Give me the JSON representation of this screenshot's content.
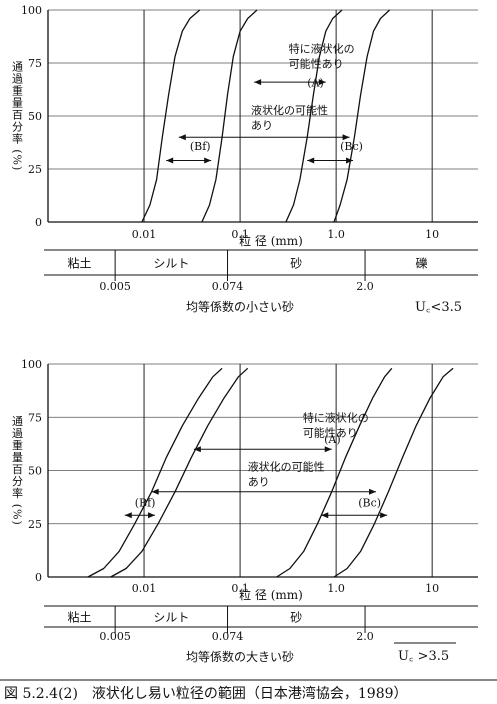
{
  "caption": "図 5.2.4(2)　液状化し易い粒径の範囲（日本港湾協会，1989）",
  "chart_data": [
    {
      "type": "line",
      "xscale": "log",
      "xlim": [
        0.001,
        30
      ],
      "ylim": [
        0,
        100
      ],
      "grid": true,
      "yticks": [
        "0",
        "25",
        "50",
        "75",
        "100"
      ],
      "xticks": [
        "0.01",
        "0.1",
        "1.0",
        "10"
      ],
      "xticks_values": [
        0.01,
        0.1,
        1.0,
        10
      ],
      "xlabel": "粒 径 (mm)",
      "ylabel": "通過重量百分率 (%)",
      "series": [
        {
          "x": [
            0.0095,
            0.0115,
            0.0135,
            0.0155,
            0.018,
            0.021,
            0.025,
            0.03,
            0.038
          ],
          "y": [
            0,
            8,
            20,
            40,
            60,
            78,
            90,
            96,
            100
          ]
        },
        {
          "x": [
            0.04,
            0.048,
            0.056,
            0.065,
            0.074,
            0.085,
            0.1,
            0.12,
            0.15
          ],
          "y": [
            0,
            8,
            20,
            40,
            60,
            78,
            90,
            96,
            100
          ]
        },
        {
          "x": [
            0.3,
            0.36,
            0.42,
            0.5,
            0.58,
            0.67,
            0.78,
            0.92,
            1.15
          ],
          "y": [
            0,
            8,
            20,
            40,
            60,
            78,
            90,
            96,
            100
          ]
        },
        {
          "x": [
            0.95,
            1.1,
            1.3,
            1.55,
            1.8,
            2.1,
            2.45,
            2.9,
            3.6
          ],
          "y": [
            0,
            8,
            20,
            40,
            60,
            78,
            90,
            96,
            100
          ]
        }
      ],
      "annotations": [
        {
          "text": [
            "特に液状化の",
            "可能性あり"
          ],
          "x": 0.32,
          "y": 80
        },
        {
          "text": [
            "(A)"
          ],
          "x": 0.5,
          "y": 64
        },
        {
          "text": [
            "液状化の可能性",
            "あり"
          ],
          "x": 0.13,
          "y": 51
        },
        {
          "text": [
            "(Bf)"
          ],
          "x": 0.03,
          "y": 34
        },
        {
          "text": [
            "(Bc)"
          ],
          "x": 1.1,
          "y": 34
        }
      ],
      "arrows": [
        {
          "from": [
            0.14,
            66
          ],
          "to": [
            0.78,
            66
          ]
        },
        {
          "from": [
            0.023,
            40
          ],
          "to": [
            1.38,
            40
          ]
        },
        {
          "from": [
            0.017,
            29
          ],
          "to": [
            0.05,
            29
          ]
        },
        {
          "from": [
            0.5,
            29
          ],
          "to": [
            1.5,
            29
          ]
        }
      ],
      "classification": {
        "labels": [
          "粘土",
          "シルト",
          "砂",
          "礫"
        ],
        "boundaries": [
          "0.005",
          "0.074",
          "2.0"
        ],
        "boundary_values": [
          0.005,
          0.074,
          2.0
        ]
      },
      "subtitle": "均等係数の小さい砂",
      "uc": "U꜀<3.5"
    },
    {
      "type": "line",
      "xscale": "log",
      "xlim": [
        0.001,
        30
      ],
      "ylim": [
        0,
        100
      ],
      "grid": true,
      "yticks": [
        "0",
        "25",
        "50",
        "75",
        "100"
      ],
      "xticks": [
        "0.01",
        "0.1",
        "1.0",
        "10"
      ],
      "xticks_values": [
        0.01,
        0.1,
        1.0,
        10
      ],
      "xlabel": "粒 径 (mm)",
      "ylabel": "通過重量百分率 (%)",
      "series": [
        {
          "x": [
            0.0026,
            0.0038,
            0.0055,
            0.008,
            0.012,
            0.017,
            0.025,
            0.037,
            0.052,
            0.065
          ],
          "y": [
            0,
            4,
            12,
            25,
            40,
            56,
            71,
            84,
            94,
            98
          ]
        },
        {
          "x": [
            0.0045,
            0.0065,
            0.0095,
            0.014,
            0.021,
            0.031,
            0.046,
            0.068,
            0.096,
            0.12
          ],
          "y": [
            0,
            4,
            12,
            25,
            40,
            56,
            71,
            84,
            94,
            98
          ]
        },
        {
          "x": [
            0.24,
            0.33,
            0.46,
            0.64,
            0.9,
            1.25,
            1.75,
            2.4,
            3.2,
            3.8
          ],
          "y": [
            0,
            4,
            12,
            25,
            40,
            56,
            71,
            84,
            94,
            98
          ]
        },
        {
          "x": [
            0.95,
            1.3,
            1.8,
            2.5,
            3.5,
            4.9,
            6.8,
            9.5,
            13.0,
            16.5
          ],
          "y": [
            0,
            4,
            12,
            25,
            40,
            56,
            71,
            84,
            94,
            98
          ]
        }
      ],
      "annotations": [
        {
          "text": [
            "特に液状化の",
            "可能性あり"
          ],
          "x": 0.45,
          "y": 73
        },
        {
          "text": [
            "(A)"
          ],
          "x": 0.75,
          "y": 63
        },
        {
          "text": [
            "液状化の可能性",
            "あり"
          ],
          "x": 0.12,
          "y": 50
        },
        {
          "text": [
            "(Bf)"
          ],
          "x": 0.008,
          "y": 33
        },
        {
          "text": [
            "(Bc)"
          ],
          "x": 1.7,
          "y": 33
        }
      ],
      "arrows": [
        {
          "from": [
            0.033,
            60
          ],
          "to": [
            0.9,
            60
          ]
        },
        {
          "from": [
            0.012,
            40
          ],
          "to": [
            2.6,
            40
          ]
        },
        {
          "from": [
            0.0063,
            29
          ],
          "to": [
            0.013,
            29
          ]
        },
        {
          "from": [
            0.7,
            29
          ],
          "to": [
            3.4,
            29
          ]
        }
      ],
      "classification": {
        "labels": [
          "粘土",
          "シルト",
          "砂",
          ""
        ],
        "boundaries": [
          "0.005",
          "0.074",
          "2.0"
        ],
        "boundary_values": [
          0.005,
          0.074,
          2.0
        ]
      },
      "subtitle": "均等係数の大きい砂",
      "uc": "U꜀ >3.5"
    }
  ]
}
